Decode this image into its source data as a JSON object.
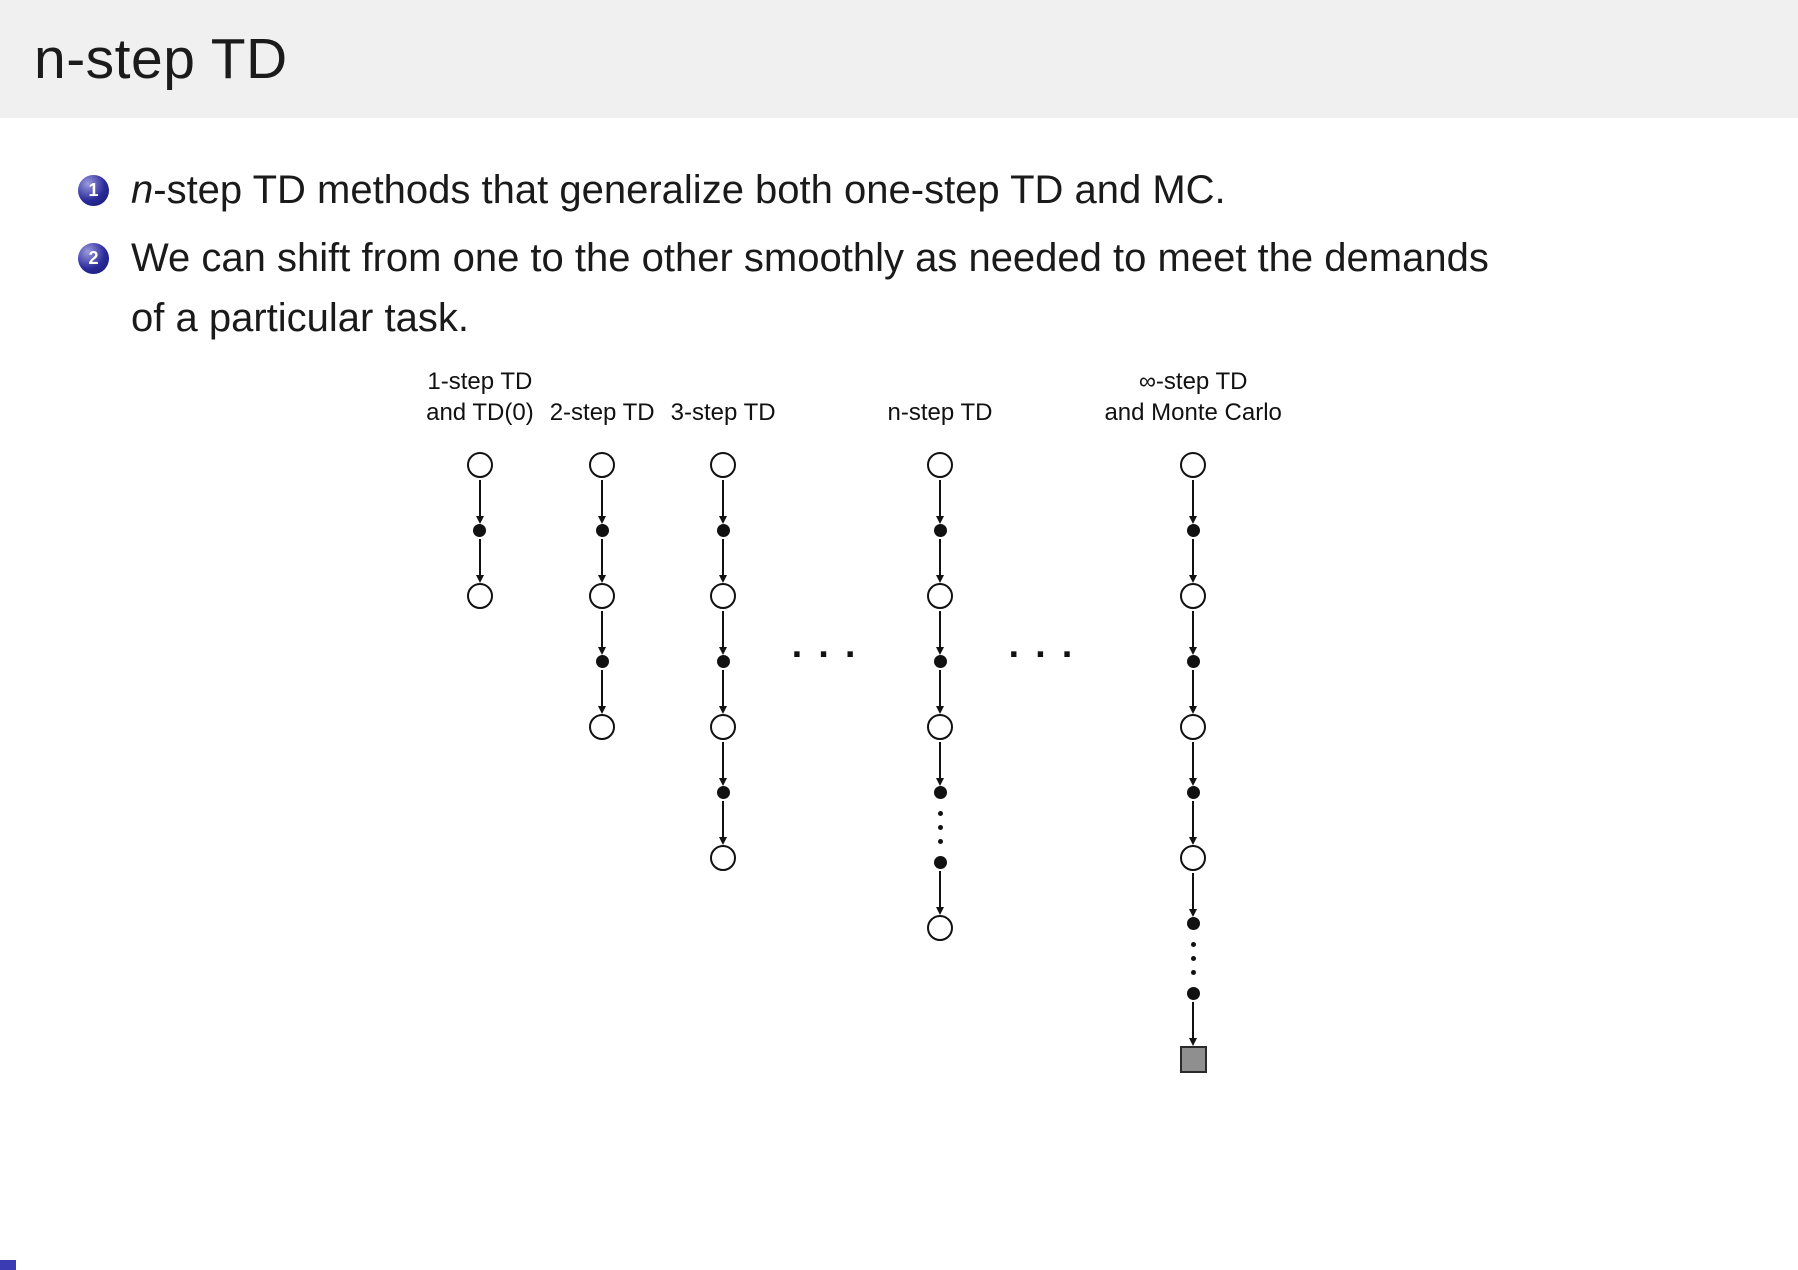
{
  "slide": {
    "title": "n-step TD",
    "bullets": [
      {
        "number": "1",
        "lead_italic": "n",
        "text": "-step TD methods that generalize both one-step TD and MC."
      },
      {
        "number": "2",
        "lead_italic": "",
        "text": "We can shift from one to the other smoothly as needed to meet the demands of a particular task."
      }
    ]
  },
  "diagram": {
    "items": [
      {
        "type": "column",
        "label_lines": [
          "1-step TD",
          "and TD(0)"
        ],
        "nodes": [
          "open",
          "filled",
          "open"
        ]
      },
      {
        "type": "column",
        "label_lines": [
          "2-step TD"
        ],
        "nodes": [
          "open",
          "filled",
          "open",
          "filled",
          "open"
        ]
      },
      {
        "type": "column",
        "label_lines": [
          "3-step TD"
        ],
        "nodes": [
          "open",
          "filled",
          "open",
          "filled",
          "open",
          "filled",
          "open"
        ]
      },
      {
        "type": "separator",
        "text": "···"
      },
      {
        "type": "column",
        "label_lines": [
          "n-step TD"
        ],
        "nodes": [
          "open",
          "filled",
          "open",
          "filled",
          "open",
          "filled",
          "vdots",
          "filled",
          "open"
        ]
      },
      {
        "type": "separator",
        "text": "···"
      },
      {
        "type": "column",
        "label_lines": [
          "∞-step TD",
          "and Monte Carlo"
        ],
        "nodes": [
          "open",
          "filled",
          "open",
          "filled",
          "open",
          "filled",
          "open",
          "filled",
          "vdots",
          "filled",
          "square"
        ]
      }
    ]
  },
  "theme": {
    "header_bg": "#f0f0f0",
    "text_color": "#1a1a1a",
    "badge_color": "#2b2b9a",
    "square_fill": "#8f8f8f",
    "footer_accent": "#3b3bb4"
  }
}
